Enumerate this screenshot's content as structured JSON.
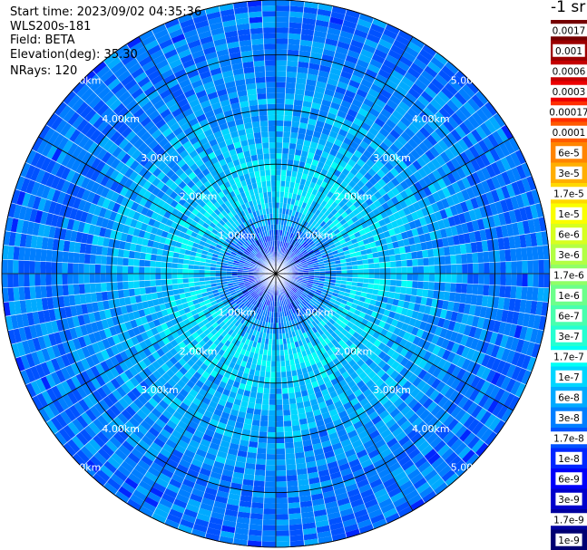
{
  "header": {
    "start_time": "Start time: 2023/09/02 04:35:36",
    "instrument": "WLS200s-181",
    "field": "Field: BETA",
    "elevation": "Elevation(deg): 35.30",
    "nrays": "NRays: 120",
    "units": "-1 sr"
  },
  "chart_data": {
    "type": "heatmap",
    "projection": "polar-ppi",
    "field": "BETA",
    "n_rays": 120,
    "range_rings_km": [
      1,
      2,
      3,
      4,
      5
    ],
    "range_ring_labels": [
      "1.00km",
      "2.00km",
      "3.00km",
      "4.00km",
      "5.00km"
    ],
    "max_range_km": 5,
    "colorbar_labels": [
      "0.0017",
      "0.001",
      "0.0006",
      "0.0003",
      "0.00017",
      "0.0001",
      "6e-5",
      "3e-5",
      "1.7e-5",
      "1e-5",
      "6e-6",
      "3e-6",
      "1.7e-6",
      "1e-6",
      "6e-7",
      "3e-7",
      "1.7e-7",
      "1e-7",
      "6e-8",
      "3e-8",
      "1.7e-8",
      "1e-8",
      "6e-9",
      "3e-9",
      "1.7e-9",
      "1e-9"
    ],
    "colorbar_colors": [
      "#750000",
      "#9c0000",
      "#c40000",
      "#ec0000",
      "#ff2e00",
      "#ff5a00",
      "#ff8400",
      "#ffae00",
      "#ffd800",
      "#fafe00",
      "#d7ff20",
      "#b3ff44",
      "#90ff67",
      "#6cff8b",
      "#48ffae",
      "#25ffd2",
      "#00fff6",
      "#00d6ff",
      "#00aaff",
      "#007eff",
      "#0052ff",
      "#0026ff",
      "#0000f9",
      "#0000cc",
      "#00009f",
      "#000072"
    ],
    "radial_profile_colorbar_index": [
      {
        "range_km": 0.0,
        "index": 20.5
      },
      {
        "range_km": 0.5,
        "index": 20.5
      },
      {
        "range_km": 0.9,
        "index": 18.8
      },
      {
        "range_km": 1.3,
        "index": 17.3
      },
      {
        "range_km": 1.6,
        "index": 16.8
      },
      {
        "range_km": 2.0,
        "index": 17.3
      },
      {
        "range_km": 2.5,
        "index": 17.8
      },
      {
        "range_km": 3.0,
        "index": 18.3
      },
      {
        "range_km": 3.6,
        "index": 18.8
      },
      {
        "range_km": 4.2,
        "index": 19.2
      },
      {
        "range_km": 5.0,
        "index": 19.4
      }
    ]
  }
}
